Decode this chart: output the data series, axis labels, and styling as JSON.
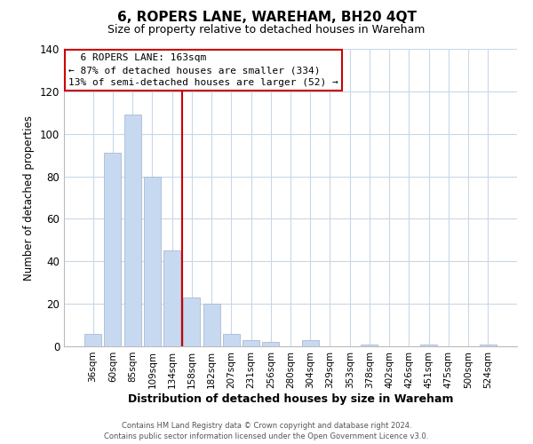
{
  "title": "6, ROPERS LANE, WAREHAM, BH20 4QT",
  "subtitle": "Size of property relative to detached houses in Wareham",
  "xlabel": "Distribution of detached houses by size in Wareham",
  "ylabel": "Number of detached properties",
  "bar_labels": [
    "36sqm",
    "60sqm",
    "85sqm",
    "109sqm",
    "134sqm",
    "158sqm",
    "182sqm",
    "207sqm",
    "231sqm",
    "256sqm",
    "280sqm",
    "304sqm",
    "329sqm",
    "353sqm",
    "378sqm",
    "402sqm",
    "426sqm",
    "451sqm",
    "475sqm",
    "500sqm",
    "524sqm"
  ],
  "bar_values": [
    6,
    91,
    109,
    80,
    45,
    23,
    20,
    6,
    3,
    2,
    0,
    3,
    0,
    0,
    1,
    0,
    0,
    1,
    0,
    0,
    1
  ],
  "bar_color": "#c6d9f1",
  "bar_edge_color": "#aabbd4",
  "ylim": [
    0,
    140
  ],
  "yticks": [
    0,
    20,
    40,
    60,
    80,
    100,
    120,
    140
  ],
  "property_line_color": "#cc0000",
  "property_line_xindex": 5,
  "annotation_title": "6 ROPERS LANE: 163sqm",
  "annotation_line1": "← 87% of detached houses are smaller (334)",
  "annotation_line2": "13% of semi-detached houses are larger (52) →",
  "annotation_box_color": "#ffffff",
  "annotation_box_edge": "#cc0000",
  "footer1": "Contains HM Land Registry data © Crown copyright and database right 2024.",
  "footer2": "Contains public sector information licensed under the Open Government Licence v3.0.",
  "background_color": "#ffffff",
  "grid_color": "#c8d8e8",
  "title_fontsize": 11,
  "subtitle_fontsize": 9
}
